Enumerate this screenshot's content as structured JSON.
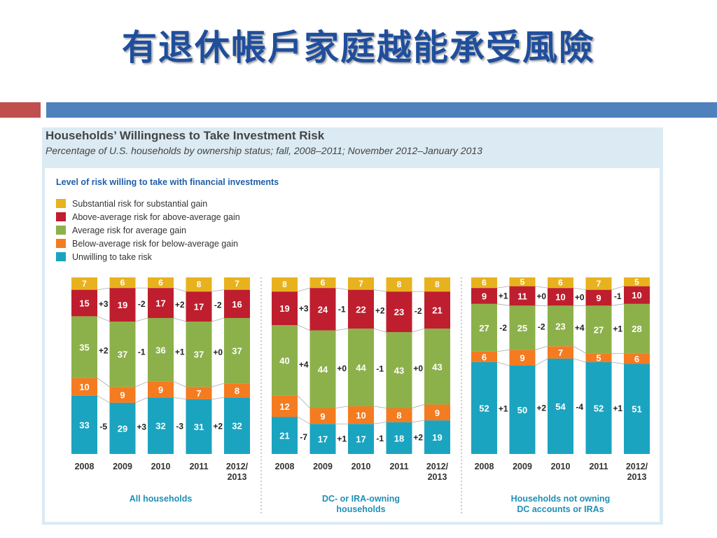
{
  "slide": {
    "title": "有退休帳戶家庭越能承受風險",
    "colors": {
      "title": "#1f4e9c",
      "deco_red": "#c0504d",
      "deco_blue": "#4f81bd"
    }
  },
  "chart_data": {
    "type": "bar",
    "stacked": true,
    "title": "Households’ Willingness to Take Investment Risk",
    "subtitle": "Percentage of U.S. households by ownership status; fall, 2008–2011; November 2012–January 2013",
    "legend_title": "Level of risk willing to take with financial investments",
    "legend_placement": "top-left",
    "series": [
      {
        "name": "Substantial risk for substantial gain",
        "color": "#e8b21e"
      },
      {
        "name": "Above-average risk for above-average gain",
        "color": "#bf1e2e"
      },
      {
        "name": "Average risk for average gain",
        "color": "#8cb14a"
      },
      {
        "name": "Below-average risk for below-average gain",
        "color": "#f47b20"
      },
      {
        "name": "Unwilling to take risk",
        "color": "#1aa4c0"
      }
    ],
    "categories": [
      "2008",
      "2009",
      "2010",
      "2011",
      "2012/\n2013"
    ],
    "groups": [
      {
        "name": "All households",
        "values": {
          "substantial": [
            7,
            6,
            6,
            8,
            7
          ],
          "above": [
            15,
            19,
            17,
            17,
            16
          ],
          "average": [
            35,
            37,
            36,
            37,
            37
          ],
          "below": [
            10,
            9,
            9,
            7,
            8
          ],
          "unwilling": [
            33,
            29,
            32,
            31,
            32
          ]
        },
        "changes": {
          "above": [
            "+3",
            "-2",
            "+2",
            "-2"
          ],
          "average": [
            "+2",
            "-1",
            "+1",
            "+0"
          ],
          "unwilling": [
            "-5",
            "+3",
            "-3",
            "+2"
          ]
        }
      },
      {
        "name": "DC- or IRA-owning households",
        "values": {
          "substantial": [
            8,
            6,
            7,
            8,
            8
          ],
          "above": [
            19,
            24,
            22,
            23,
            21
          ],
          "average": [
            40,
            44,
            44,
            43,
            43
          ],
          "below": [
            12,
            9,
            10,
            8,
            9
          ],
          "unwilling": [
            21,
            17,
            17,
            18,
            19
          ]
        },
        "changes": {
          "above": [
            "+3",
            "-1",
            "+2",
            "-2"
          ],
          "average": [
            "+4",
            "+0",
            "-1",
            "+0"
          ],
          "unwilling": [
            "-7",
            "+1",
            "-1",
            "+2"
          ]
        }
      },
      {
        "name": "Households not owning DC accounts or IRAs",
        "values": {
          "substantial": [
            6,
            5,
            6,
            7,
            5
          ],
          "above": [
            9,
            11,
            10,
            9,
            10
          ],
          "average": [
            27,
            25,
            23,
            27,
            28
          ],
          "below": [
            6,
            9,
            7,
            5,
            6
          ],
          "unwilling": [
            52,
            50,
            54,
            52,
            51
          ]
        },
        "changes": {
          "above": [
            "+1",
            "+0",
            "+0",
            "-1"
          ],
          "average": [
            "-2",
            "-2",
            "+4",
            "+1"
          ],
          "unwilling": [
            "+1",
            "+2",
            "-4",
            "+1"
          ]
        }
      }
    ],
    "ylim": [
      0,
      100
    ],
    "grid": false
  }
}
